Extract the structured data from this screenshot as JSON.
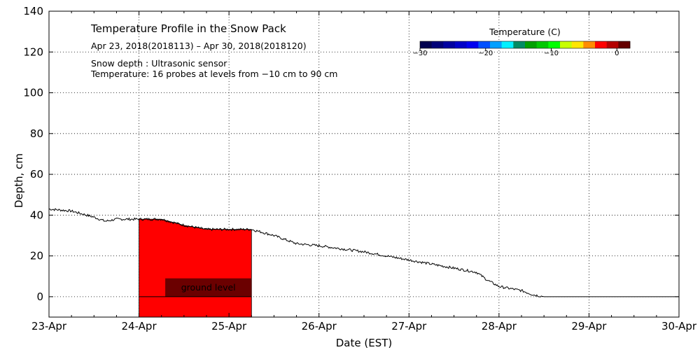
{
  "chart_data": {
    "type": "area",
    "title": "Temperature Profile in the Snow Pack",
    "subtitle": "Apr 23, 2018(2018113) – Apr 30, 2018(2018120)",
    "notes": [
      "Snow depth : Ultrasonic sensor",
      "Temperature: 16 probes at levels from −10 cm to 90 cm"
    ],
    "xlabel": "Date (EST)",
    "ylabel": "Depth, cm",
    "xlim": [
      "2018-04-23",
      "2018-04-30"
    ],
    "ylim": [
      -10,
      140
    ],
    "x_tick_labels": [
      "23-Apr",
      "24-Apr",
      "25-Apr",
      "26-Apr",
      "27-Apr",
      "28-Apr",
      "29-Apr",
      "30-Apr"
    ],
    "y_ticks": [
      0,
      20,
      40,
      60,
      80,
      100,
      120,
      140
    ],
    "grid": true,
    "annotation": "ground level",
    "snow_depth_series": {
      "x": [
        "2018-04-23 00:00",
        "2018-04-23 06:00",
        "2018-04-23 12:00",
        "2018-04-23 15:00",
        "2018-04-23 18:00",
        "2018-04-24 00:00",
        "2018-04-24 06:00",
        "2018-04-24 12:00",
        "2018-04-24 18:00",
        "2018-04-25 00:00",
        "2018-04-25 06:00",
        "2018-04-25 12:00",
        "2018-04-25 18:00",
        "2018-04-26 00:00",
        "2018-04-26 12:00",
        "2018-04-26 18:00",
        "2018-04-27 00:00",
        "2018-04-27 06:00",
        "2018-04-27 12:00",
        "2018-04-27 18:00",
        "2018-04-27 21:00",
        "2018-04-28 00:00",
        "2018-04-28 06:00",
        "2018-04-28 09:00",
        "2018-04-28 12:00",
        "2018-04-29 00:00",
        "2018-04-30 00:00"
      ],
      "values": [
        43,
        42,
        39,
        37,
        38,
        38,
        38,
        35,
        33,
        33,
        33,
        30,
        26,
        25,
        22,
        20,
        18,
        16,
        14,
        12,
        8,
        5,
        3,
        1,
        0,
        0,
        0
      ]
    },
    "temperature_block": {
      "x_start": "2018-04-24 00:00",
      "x_end": "2018-04-25 06:00",
      "values_cm": [
        -10,
        90
      ],
      "color": "#ff0000"
    },
    "ground_block": {
      "x_start": "2018-04-24 07:00",
      "x_end": "2018-04-25 06:00",
      "y_range": [
        0,
        9
      ],
      "color": "#6b0000"
    },
    "colorbar": {
      "title": "Temperature (C)",
      "tick_labels": [
        "−30",
        "−20",
        "−10",
        "0"
      ],
      "tick_values": [
        -30,
        -20,
        -10,
        0
      ],
      "range": [
        -30,
        2
      ],
      "colors": [
        "#000050",
        "#000078",
        "#0000a0",
        "#0000c8",
        "#0000f0",
        "#0050ff",
        "#00a0ff",
        "#00f0ff",
        "#008c64",
        "#00a000",
        "#00c800",
        "#00ff00",
        "#c8ff00",
        "#ffe600",
        "#ff8c00",
        "#ff0000",
        "#b40000",
        "#640000"
      ]
    }
  }
}
